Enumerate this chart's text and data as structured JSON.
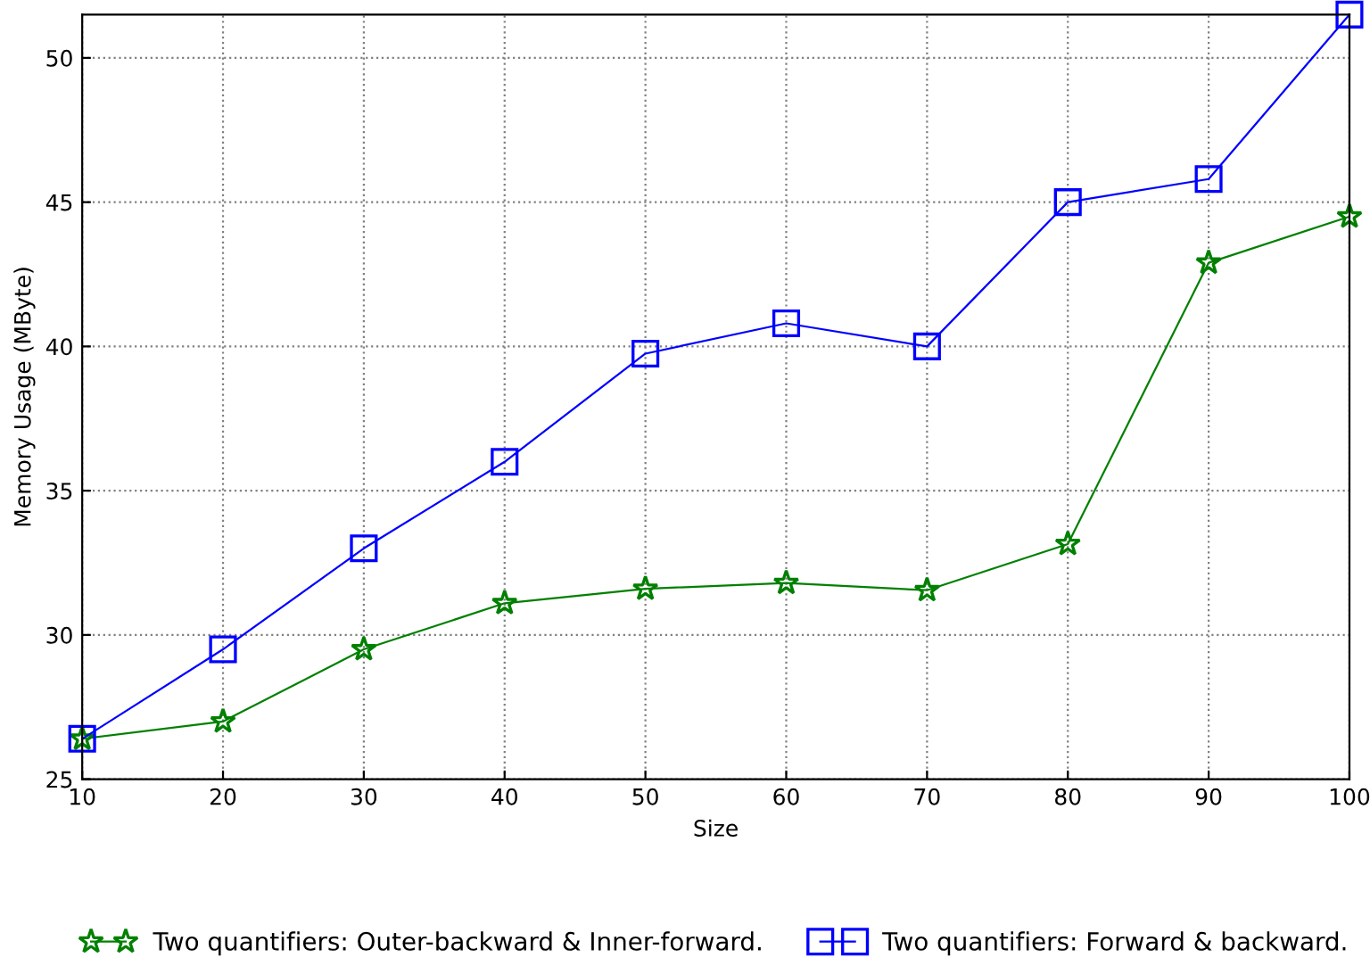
{
  "chart_data": {
    "type": "line",
    "xlabel": "Size",
    "ylabel": "Memory Usage (MByte)",
    "x": [
      10,
      20,
      30,
      40,
      50,
      60,
      70,
      80,
      90,
      100
    ],
    "series": [
      {
        "name": "Two quantifiers: Outer-backward & Inner-forward.",
        "color": "#008000",
        "marker": "star",
        "values": [
          26.4,
          27.0,
          29.5,
          31.1,
          31.6,
          31.8,
          31.55,
          33.15,
          42.9,
          44.5
        ]
      },
      {
        "name": "Two quantifiers: Forward & backward.",
        "color": "#0000ff",
        "marker": "square",
        "values": [
          26.4,
          29.5,
          33.0,
          36.0,
          39.75,
          40.8,
          40.0,
          45.0,
          45.8,
          51.5
        ]
      }
    ],
    "xlim": [
      10,
      100
    ],
    "xticks": [
      10,
      20,
      30,
      40,
      50,
      60,
      70,
      80,
      90,
      100
    ],
    "ylim": [
      25,
      51.5
    ],
    "yticks": [
      25,
      30,
      35,
      40,
      45,
      50
    ],
    "grid": true,
    "legend": "bottom",
    "line_style": "solid"
  }
}
